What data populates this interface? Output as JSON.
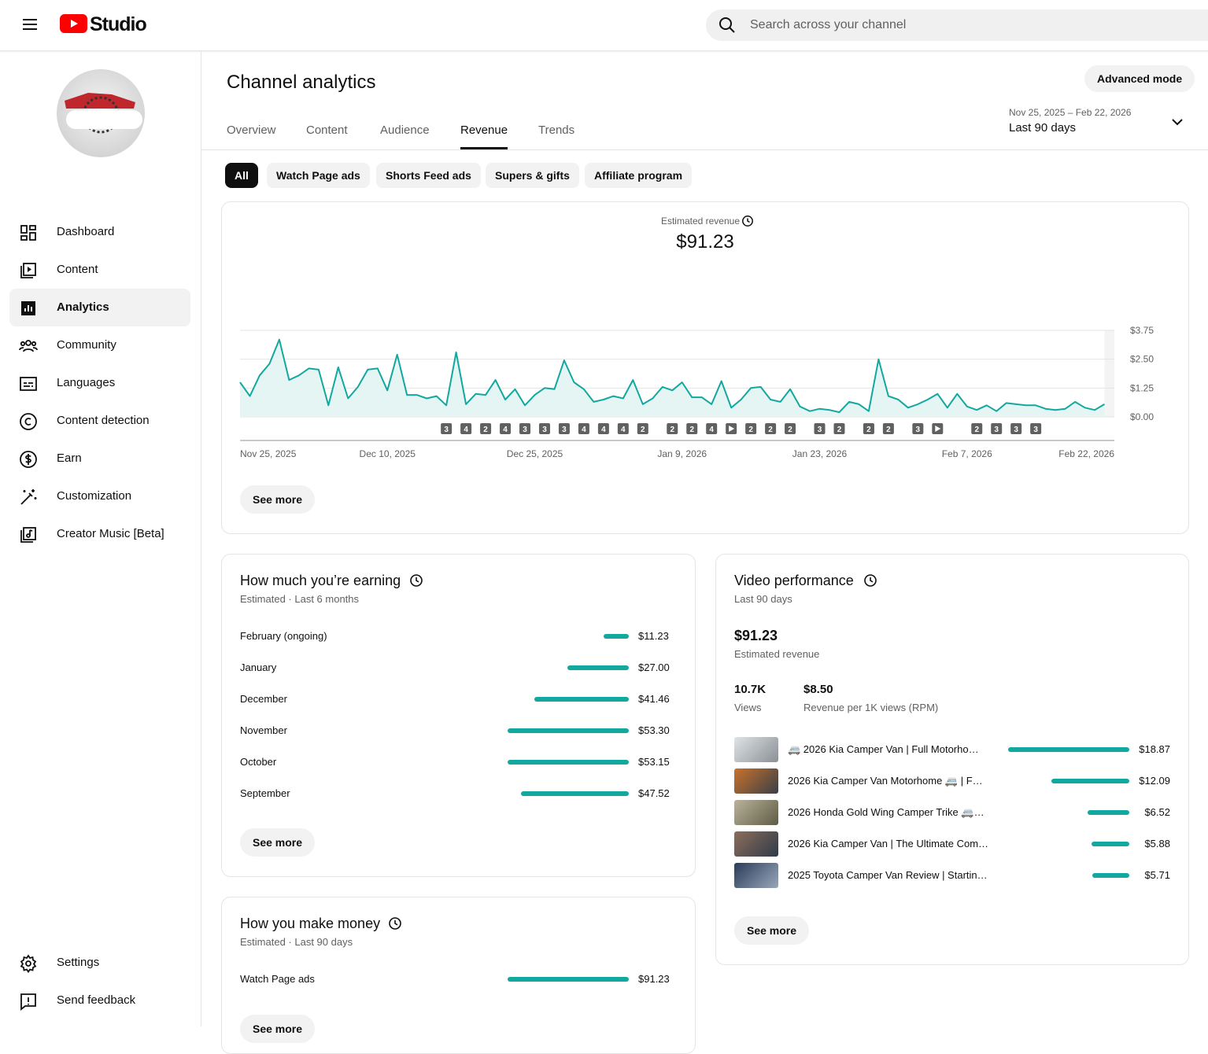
{
  "header": {
    "logo": "Studio",
    "search_placeholder": "Search across your channel"
  },
  "sidebar": {
    "items": [
      "Dashboard",
      "Content",
      "Analytics",
      "Community",
      "Languages",
      "Content detection",
      "Earn",
      "Customization",
      "Creator Music [Beta]"
    ],
    "active_item": 2,
    "footer": [
      "Settings",
      "Send feedback"
    ]
  },
  "page": {
    "title": "Channel analytics",
    "advanced_mode": "Advanced mode",
    "tabs": [
      "Overview",
      "Content",
      "Audience",
      "Revenue",
      "Trends"
    ],
    "active_tab": 3,
    "date_range": "Nov 25, 2025 – Feb 22, 2026",
    "period": "Last 90 days",
    "chips": [
      "All",
      "Watch Page ads",
      "Shorts Feed ads",
      "Supers & gifts",
      "Affiliate program"
    ],
    "active_chip": 0
  },
  "chart_data": {
    "type": "line",
    "title": "Estimated revenue",
    "total": "$91.23",
    "color": "#12a89f",
    "grid": true,
    "categories": [
      "Nov 25, 2025",
      null,
      null,
      null,
      null,
      null,
      null,
      null,
      null,
      null,
      null,
      null,
      null,
      null,
      null,
      "Dec 10, 2025",
      null,
      null,
      null,
      null,
      null,
      null,
      null,
      null,
      null,
      null,
      null,
      null,
      null,
      null,
      "Dec 25, 2025",
      null,
      null,
      null,
      null,
      null,
      null,
      null,
      null,
      null,
      null,
      null,
      null,
      null,
      null,
      "Jan 9, 2026",
      null,
      null,
      null,
      null,
      null,
      null,
      null,
      null,
      null,
      null,
      null,
      null,
      null,
      "Jan 23, 2026",
      null,
      null,
      null,
      null,
      null,
      null,
      null,
      null,
      null,
      null,
      null,
      null,
      null,
      null,
      "Feb 7, 2026",
      null,
      null,
      null,
      null,
      null,
      null,
      null,
      null,
      null,
      null,
      null,
      null,
      null,
      null,
      "Feb 22, 2026"
    ],
    "values": [
      1.5,
      0.9,
      1.8,
      2.3,
      3.35,
      1.6,
      1.8,
      2.1,
      2.05,
      0.5,
      2.15,
      0.8,
      1.3,
      2.05,
      2.1,
      1.15,
      2.7,
      0.95,
      0.95,
      0.8,
      0.9,
      0.5,
      2.8,
      0.55,
      1.0,
      0.95,
      1.6,
      0.75,
      1.2,
      0.5,
      0.95,
      1.25,
      1.2,
      2.45,
      1.5,
      1.2,
      0.65,
      0.75,
      0.9,
      0.8,
      1.6,
      0.55,
      0.8,
      1.3,
      1.15,
      1.5,
      0.85,
      0.85,
      0.55,
      1.55,
      0.4,
      0.75,
      1.25,
      1.3,
      0.75,
      0.65,
      1.2,
      0.45,
      0.25,
      0.35,
      0.3,
      0.2,
      0.65,
      0.55,
      0.25,
      2.5,
      0.9,
      0.75,
      0.4,
      0.55,
      0.75,
      1.0,
      0.4,
      1.0,
      0.45,
      0.3,
      0.5,
      0.25,
      0.6,
      0.55,
      0.5,
      0.5,
      0.35,
      0.3,
      0.35,
      0.65,
      0.4,
      0.3,
      0.55,
      null
    ],
    "uploads": [
      null,
      null,
      null,
      null,
      null,
      null,
      null,
      null,
      null,
      null,
      null,
      null,
      null,
      null,
      null,
      null,
      null,
      null,
      null,
      null,
      null,
      3,
      null,
      4,
      null,
      2,
      null,
      4,
      null,
      3,
      null,
      3,
      null,
      3,
      null,
      4,
      null,
      4,
      null,
      4,
      null,
      2,
      null,
      null,
      2,
      null,
      2,
      null,
      4,
      null,
      1,
      null,
      2,
      null,
      2,
      null,
      2,
      null,
      null,
      3,
      null,
      2,
      null,
      null,
      2,
      null,
      2,
      null,
      null,
      3,
      null,
      1,
      null,
      null,
      null,
      2,
      null,
      3,
      null,
      3,
      null,
      3,
      null,
      null,
      null,
      null,
      null,
      null,
      null,
      null
    ],
    "ylim": [
      0,
      3.75
    ],
    "yticks": [
      {
        "value": 0,
        "label": "$0.00"
      },
      {
        "value": 1.25,
        "label": "$1.25"
      },
      {
        "value": 2.5,
        "label": "$2.50"
      },
      {
        "value": 3.75,
        "label": "$3.75"
      }
    ],
    "see_more": "See more"
  },
  "earnings": {
    "title": "How much you’re earning",
    "subtitle": "Estimated · Last 6 months",
    "color": "#12a89f",
    "categories": [
      "February (ongoing)",
      "January",
      "December",
      "November",
      "October",
      "September"
    ],
    "values": [
      11.23,
      27.0,
      41.46,
      53.3,
      53.15,
      47.52
    ],
    "value_labels": [
      "$11.23",
      "$27.00",
      "$41.46",
      "$53.30",
      "$53.15",
      "$47.52"
    ],
    "see_more": "See more"
  },
  "video_performance": {
    "title": "Video performance",
    "subtitle": "Last 90 days",
    "total": "$91.23",
    "total_label": "Estimated revenue",
    "stats": [
      {
        "value": "10.7K",
        "label": "Views"
      },
      {
        "value": "$8.50",
        "label": "Revenue per 1K views (RPM)"
      }
    ],
    "color": "#12a89f",
    "categories": [
      "🚐 2026 Kia Camper Van | Full Motorho…",
      "2026 Kia Camper Van Motorhome 🚐 | F…",
      "2026 Honda Gold Wing Camper Trike 🚐…",
      "2026 Kia Camper Van | The Ultimate Com…",
      "2025 Toyota Camper Van Review | Startin…"
    ],
    "values": [
      18.87,
      12.09,
      6.52,
      5.88,
      5.71
    ],
    "value_labels": [
      "$18.87",
      "$12.09",
      "$6.52",
      "$5.88",
      "$5.71"
    ],
    "see_more": "See more"
  },
  "revenue_sources": {
    "title": "How you make money",
    "subtitle": "Estimated · Last 90 days",
    "color": "#12a89f",
    "categories": [
      "Watch Page ads"
    ],
    "values": [
      91.23
    ],
    "value_labels": [
      "$91.23"
    ],
    "see_more": "See more"
  }
}
